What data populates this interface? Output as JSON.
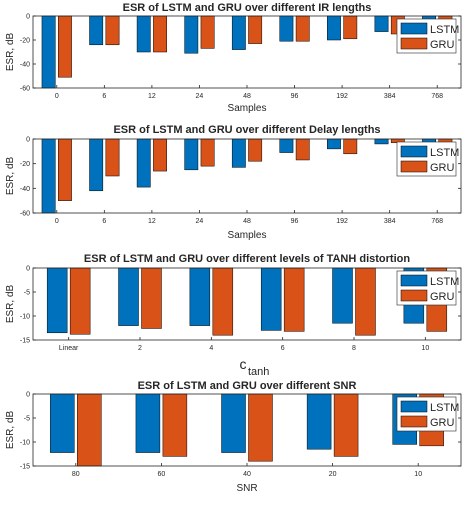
{
  "colors": {
    "lstm": "#0072BD",
    "gru": "#D95319",
    "axis": "#262626"
  },
  "chart_data": [
    {
      "type": "bar",
      "title": "ESR of LSTM and GRU over different IR lengths",
      "xlabel": "Samples",
      "ylabel": "ESR, dB",
      "categories": [
        "0",
        "6",
        "12",
        "24",
        "48",
        "96",
        "192",
        "384",
        "768"
      ],
      "ylim": [
        -60,
        0
      ],
      "yticks": [
        0,
        -20,
        -40,
        -60
      ],
      "legend": "top-right",
      "series": [
        {
          "name": "LSTM",
          "values": [
            -60,
            -24,
            -30,
            -31,
            -28,
            -21,
            -20,
            -13,
            -8
          ]
        },
        {
          "name": "GRU",
          "values": [
            -51,
            -24,
            -30,
            -27,
            -23,
            -21,
            -19,
            -15,
            -3
          ]
        }
      ]
    },
    {
      "type": "bar",
      "title": "ESR of LSTM and GRU over different Delay lengths",
      "xlabel": "Samples",
      "ylabel": "ESR, dB",
      "categories": [
        "0",
        "6",
        "12",
        "24",
        "48",
        "96",
        "192",
        "384",
        "768"
      ],
      "ylim": [
        -60,
        0
      ],
      "yticks": [
        0,
        -20,
        -40,
        -60
      ],
      "legend": "top-right",
      "series": [
        {
          "name": "LSTM",
          "values": [
            -60,
            -42,
            -39,
            -25,
            -23,
            -11,
            -8,
            -4,
            -3
          ]
        },
        {
          "name": "GRU",
          "values": [
            -50,
            -30,
            -26,
            -22,
            -18,
            -17,
            -12,
            -3,
            -20
          ]
        }
      ]
    },
    {
      "type": "bar",
      "title": "ESR of LSTM and GRU over different levels of TANH distortion",
      "xlabel": "c",
      "xlabel_sub": "tanh",
      "ylabel": "ESR, dB",
      "categories": [
        "Linear",
        "2",
        "4",
        "6",
        "8",
        "10"
      ],
      "ylim": [
        -15,
        0
      ],
      "yticks": [
        0,
        -5,
        -10,
        -15
      ],
      "legend": "top-right",
      "series": [
        {
          "name": "LSTM",
          "values": [
            -13.5,
            -12,
            -12,
            -13,
            -11.5,
            -11.5
          ]
        },
        {
          "name": "GRU",
          "values": [
            -13.8,
            -12.6,
            -14,
            -13.2,
            -14,
            -13.2
          ]
        }
      ]
    },
    {
      "type": "bar",
      "title": "ESR of LSTM and GRU over different SNR",
      "xlabel": "SNR",
      "ylabel": "ESR, dB",
      "categories": [
        "80",
        "60",
        "40",
        "20",
        "10"
      ],
      "ylim": [
        -15,
        0
      ],
      "yticks": [
        0,
        -5,
        -10,
        -15
      ],
      "legend": "top-right",
      "series": [
        {
          "name": "LSTM",
          "values": [
            -12.2,
            -12.2,
            -12.2,
            -11.5,
            -10.5
          ]
        },
        {
          "name": "GRU",
          "values": [
            -15,
            -13,
            -14,
            -13,
            -10.8
          ]
        }
      ]
    }
  ]
}
